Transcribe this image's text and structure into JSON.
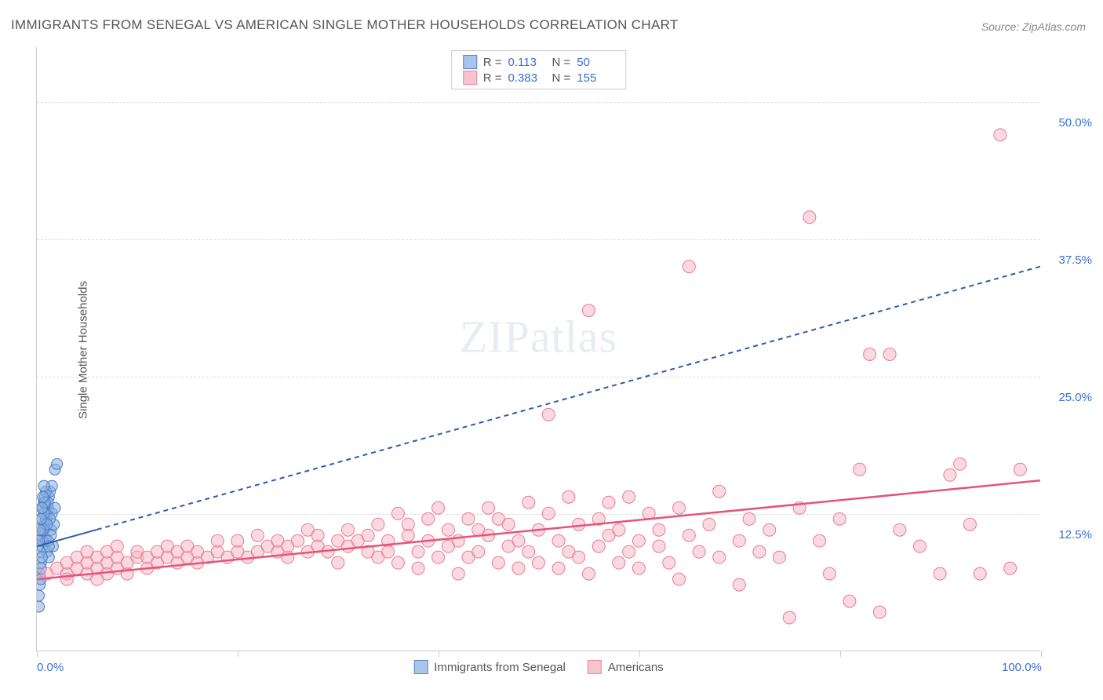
{
  "chart": {
    "title": "IMMIGRANTS FROM SENEGAL VS AMERICAN SINGLE MOTHER HOUSEHOLDS CORRELATION CHART",
    "source": "Source: ZipAtlas.com",
    "watermark_a": "ZIP",
    "watermark_b": "atlas",
    "y_axis_label": "Single Mother Households",
    "type": "scatter",
    "background_color": "#ffffff",
    "grid_color": "#dddddd",
    "axis_color": "#cccccc",
    "title_fontsize": 17,
    "label_fontsize": 15,
    "tick_color": "#3b6fd4",
    "xlim": [
      0,
      100
    ],
    "ylim": [
      0,
      55
    ],
    "x_ticks": [
      0,
      20,
      40,
      60,
      80,
      100
    ],
    "x_tick_labels_shown": {
      "0": "0.0%",
      "100": "100.0%"
    },
    "y_ticks": [
      12.5,
      25.0,
      37.5,
      50.0
    ],
    "y_tick_labels": [
      "12.5%",
      "25.0%",
      "37.5%",
      "50.0%"
    ],
    "stats": [
      {
        "r": "0.113",
        "n": "50",
        "swatch_fill": "#a9c5ed",
        "swatch_border": "#5a86c9"
      },
      {
        "r": "0.383",
        "n": "155",
        "swatch_fill": "#f7c3ce",
        "swatch_border": "#e98ba2"
      }
    ],
    "legend": [
      {
        "label": "Immigrants from Senegal",
        "swatch_fill": "#a9c5ed",
        "swatch_border": "#5a86c9"
      },
      {
        "label": "Americans",
        "swatch_fill": "#f7c3ce",
        "swatch_border": "#e98ba2"
      }
    ],
    "series": [
      {
        "name": "senegal",
        "marker_fill": "rgba(139, 175, 224, 0.55)",
        "marker_stroke": "#4a7bc4",
        "marker_radius": 7,
        "trend": {
          "x1": 0,
          "y1": 9.5,
          "x2": 100,
          "y2": 35,
          "stroke": "#2e5ba8",
          "stroke_width": 2,
          "dash": "6,5",
          "solid_until_x": 6
        },
        "points": [
          [
            0.2,
            5.0
          ],
          [
            0.3,
            7.0
          ],
          [
            0.4,
            8.0
          ],
          [
            0.3,
            9.0
          ],
          [
            0.5,
            9.5
          ],
          [
            0.6,
            10.0
          ],
          [
            0.4,
            10.5
          ],
          [
            0.7,
            11.0
          ],
          [
            0.8,
            11.5
          ],
          [
            0.5,
            12.0
          ],
          [
            0.9,
            12.0
          ],
          [
            1.0,
            12.5
          ],
          [
            0.6,
            13.0
          ],
          [
            1.1,
            13.0
          ],
          [
            0.7,
            13.5
          ],
          [
            1.2,
            14.0
          ],
          [
            0.8,
            14.0
          ],
          [
            1.3,
            14.5
          ],
          [
            0.9,
            10.0
          ],
          [
            1.4,
            11.0
          ],
          [
            1.0,
            9.0
          ],
          [
            1.5,
            12.5
          ],
          [
            1.1,
            13.5
          ],
          [
            1.6,
            9.5
          ],
          [
            1.2,
            8.5
          ],
          [
            1.7,
            11.5
          ],
          [
            1.3,
            12.0
          ],
          [
            1.8,
            13.0
          ],
          [
            1.4,
            10.5
          ],
          [
            0.3,
            6.0
          ],
          [
            0.4,
            7.5
          ],
          [
            0.5,
            8.5
          ],
          [
            0.6,
            11.0
          ],
          [
            0.7,
            12.5
          ],
          [
            0.8,
            13.5
          ],
          [
            0.9,
            14.5
          ],
          [
            1.0,
            11.5
          ],
          [
            1.1,
            10.0
          ],
          [
            1.2,
            9.5
          ],
          [
            1.5,
            15.0
          ],
          [
            1.8,
            16.5
          ],
          [
            2.0,
            17.0
          ],
          [
            0.2,
            10.0
          ],
          [
            0.3,
            11.0
          ],
          [
            0.4,
            12.0
          ],
          [
            0.5,
            13.0
          ],
          [
            0.6,
            14.0
          ],
          [
            0.7,
            15.0
          ],
          [
            0.2,
            4.0
          ],
          [
            0.4,
            6.5
          ]
        ]
      },
      {
        "name": "americans",
        "marker_fill": "rgba(247, 180, 195, 0.5)",
        "marker_stroke": "#e77a95",
        "marker_radius": 8,
        "trend": {
          "x1": 0,
          "y1": 6.5,
          "x2": 100,
          "y2": 15.5,
          "stroke": "#e6537a",
          "stroke_width": 2.5,
          "dash": null
        },
        "points": [
          [
            1,
            7.0
          ],
          [
            2,
            7.5
          ],
          [
            3,
            7.0
          ],
          [
            3,
            8.0
          ],
          [
            4,
            7.5
          ],
          [
            4,
            8.5
          ],
          [
            5,
            7.0
          ],
          [
            5,
            8.0
          ],
          [
            5,
            9.0
          ],
          [
            6,
            7.5
          ],
          [
            6,
            8.5
          ],
          [
            7,
            7.0
          ],
          [
            7,
            8.0
          ],
          [
            7,
            9.0
          ],
          [
            8,
            7.5
          ],
          [
            8,
            8.5
          ],
          [
            8,
            9.5
          ],
          [
            9,
            7.0
          ],
          [
            9,
            8.0
          ],
          [
            10,
            8.5
          ],
          [
            10,
            9.0
          ],
          [
            11,
            7.5
          ],
          [
            11,
            8.5
          ],
          [
            12,
            8.0
          ],
          [
            12,
            9.0
          ],
          [
            13,
            8.5
          ],
          [
            13,
            9.5
          ],
          [
            14,
            8.0
          ],
          [
            14,
            9.0
          ],
          [
            15,
            8.5
          ],
          [
            15,
            9.5
          ],
          [
            16,
            8.0
          ],
          [
            16,
            9.0
          ],
          [
            17,
            8.5
          ],
          [
            18,
            9.0
          ],
          [
            18,
            10.0
          ],
          [
            19,
            8.5
          ],
          [
            20,
            9.0
          ],
          [
            20,
            10.0
          ],
          [
            21,
            8.5
          ],
          [
            22,
            9.0
          ],
          [
            22,
            10.5
          ],
          [
            23,
            9.5
          ],
          [
            24,
            9.0
          ],
          [
            24,
            10.0
          ],
          [
            25,
            8.5
          ],
          [
            25,
            9.5
          ],
          [
            26,
            10.0
          ],
          [
            27,
            9.0
          ],
          [
            27,
            11.0
          ],
          [
            28,
            9.5
          ],
          [
            28,
            10.5
          ],
          [
            29,
            9.0
          ],
          [
            30,
            10.0
          ],
          [
            30,
            8.0
          ],
          [
            31,
            9.5
          ],
          [
            31,
            11.0
          ],
          [
            32,
            10.0
          ],
          [
            33,
            9.0
          ],
          [
            33,
            10.5
          ],
          [
            34,
            8.5
          ],
          [
            34,
            11.5
          ],
          [
            35,
            10.0
          ],
          [
            35,
            9.0
          ],
          [
            36,
            12.5
          ],
          [
            36,
            8.0
          ],
          [
            37,
            10.5
          ],
          [
            37,
            11.5
          ],
          [
            38,
            9.0
          ],
          [
            38,
            7.5
          ],
          [
            39,
            10.0
          ],
          [
            39,
            12.0
          ],
          [
            40,
            8.5
          ],
          [
            40,
            13.0
          ],
          [
            41,
            9.5
          ],
          [
            41,
            11.0
          ],
          [
            42,
            10.0
          ],
          [
            42,
            7.0
          ],
          [
            43,
            12.0
          ],
          [
            43,
            8.5
          ],
          [
            44,
            11.0
          ],
          [
            44,
            9.0
          ],
          [
            45,
            10.5
          ],
          [
            45,
            13.0
          ],
          [
            46,
            8.0
          ],
          [
            46,
            12.0
          ],
          [
            47,
            9.5
          ],
          [
            47,
            11.5
          ],
          [
            48,
            10.0
          ],
          [
            48,
            7.5
          ],
          [
            49,
            13.5
          ],
          [
            49,
            9.0
          ],
          [
            50,
            11.0
          ],
          [
            50,
            8.0
          ],
          [
            51,
            12.5
          ],
          [
            51,
            21.5
          ],
          [
            52,
            10.0
          ],
          [
            52,
            7.5
          ],
          [
            53,
            14.0
          ],
          [
            53,
            9.0
          ],
          [
            54,
            11.5
          ],
          [
            54,
            8.5
          ],
          [
            55,
            31.0
          ],
          [
            55,
            7.0
          ],
          [
            56,
            12.0
          ],
          [
            56,
            9.5
          ],
          [
            57,
            10.5
          ],
          [
            57,
            13.5
          ],
          [
            58,
            8.0
          ],
          [
            58,
            11.0
          ],
          [
            59,
            9.0
          ],
          [
            59,
            14.0
          ],
          [
            60,
            10.0
          ],
          [
            60,
            7.5
          ],
          [
            61,
            12.5
          ],
          [
            62,
            9.5
          ],
          [
            62,
            11.0
          ],
          [
            63,
            8.0
          ],
          [
            64,
            13.0
          ],
          [
            64,
            6.5
          ],
          [
            65,
            10.5
          ],
          [
            65,
            35.0
          ],
          [
            66,
            9.0
          ],
          [
            67,
            11.5
          ],
          [
            68,
            8.5
          ],
          [
            68,
            14.5
          ],
          [
            70,
            10.0
          ],
          [
            70,
            6.0
          ],
          [
            71,
            12.0
          ],
          [
            72,
            9.0
          ],
          [
            73,
            11.0
          ],
          [
            74,
            8.5
          ],
          [
            75,
            3.0
          ],
          [
            76,
            13.0
          ],
          [
            77,
            39.5
          ],
          [
            78,
            10.0
          ],
          [
            79,
            7.0
          ],
          [
            80,
            12.0
          ],
          [
            81,
            4.5
          ],
          [
            82,
            16.5
          ],
          [
            83,
            27.0
          ],
          [
            84,
            3.5
          ],
          [
            85,
            27.0
          ],
          [
            86,
            11.0
          ],
          [
            88,
            9.5
          ],
          [
            90,
            7.0
          ],
          [
            91,
            16.0
          ],
          [
            92,
            17.0
          ],
          [
            93,
            11.5
          ],
          [
            94,
            7.0
          ],
          [
            96,
            47.0
          ],
          [
            97,
            7.5
          ],
          [
            98,
            16.5
          ],
          [
            3,
            6.5
          ],
          [
            6,
            6.5
          ]
        ]
      }
    ]
  }
}
